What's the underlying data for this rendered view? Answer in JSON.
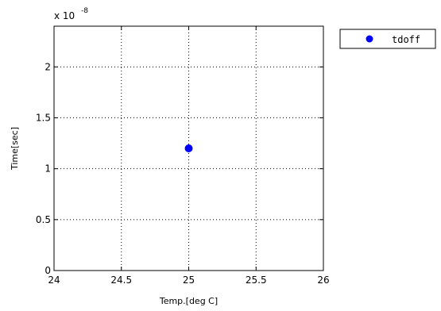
{
  "chart_data": {
    "type": "scatter",
    "xlabel": "Temp.[deg C]",
    "ylabel": "Time[sec]",
    "y_exponent_base": "x 10",
    "y_exponent_power": "-8",
    "xlim": [
      24,
      26
    ],
    "ylim": [
      0,
      2.4
    ],
    "x_ticks": [
      "24",
      "24.5",
      "25",
      "25.5",
      "26"
    ],
    "x_tick_values": [
      24,
      24.5,
      25,
      25.5,
      26
    ],
    "y_ticks": [
      "0",
      "0.5",
      "1",
      "1.5",
      "2"
    ],
    "y_tick_values": [
      0,
      0.5,
      1,
      1.5,
      2
    ],
    "grid": true,
    "legend_position": "outside-right-top",
    "series": [
      {
        "name": "tdoff",
        "color": "#0000ff",
        "x": [
          25
        ],
        "y": [
          1.2
        ]
      }
    ]
  }
}
